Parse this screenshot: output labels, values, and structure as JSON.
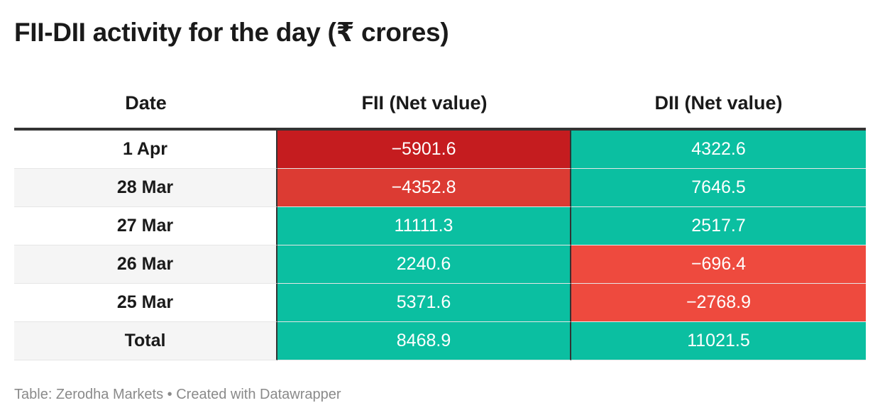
{
  "title": "FII-DII activity for the day (₹ crores)",
  "colors": {
    "positive": "#0bbfa1",
    "negative_strong": "#c51c1f",
    "negative_medium": "#dc3b33",
    "negative_light": "#ee4a3e",
    "header_rule": "#333333",
    "stripe": "#f5f5f5"
  },
  "source": "Table: Zerodha Markets • Created with Datawrapper",
  "chart_data": {
    "type": "table",
    "columns": [
      "Date",
      "FII (Net value)",
      "DII (Net value)"
    ],
    "rows": [
      {
        "date": "1 Apr",
        "fii": "−5901.6",
        "dii": "4322.6",
        "fii_color": "#c51c1f",
        "dii_color": "#0bbfa1"
      },
      {
        "date": "28 Mar",
        "fii": "−4352.8",
        "dii": "7646.5",
        "fii_color": "#dc3b33",
        "dii_color": "#0bbfa1"
      },
      {
        "date": "27 Mar",
        "fii": "11111.3",
        "dii": "2517.7",
        "fii_color": "#0bbfa1",
        "dii_color": "#0bbfa1"
      },
      {
        "date": "26 Mar",
        "fii": "2240.6",
        "dii": "−696.4",
        "fii_color": "#0bbfa1",
        "dii_color": "#ee4a3e"
      },
      {
        "date": "25 Mar",
        "fii": "5371.6",
        "dii": "−2768.9",
        "fii_color": "#0bbfa1",
        "dii_color": "#ee4a3e"
      },
      {
        "date": "Total",
        "fii": "8468.9",
        "dii": "11021.5",
        "fii_color": "#0bbfa1",
        "dii_color": "#0bbfa1"
      }
    ]
  }
}
